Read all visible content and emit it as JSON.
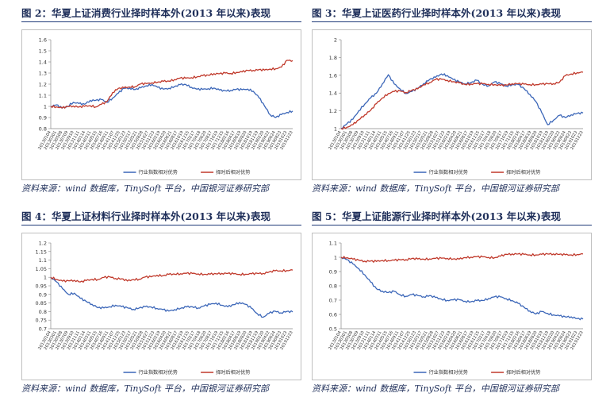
{
  "panels": [
    {
      "title": "图 2：华夏上证消费行业择时样本外(2013 年以来)表现",
      "source": "资料来源：wind 数据库，TinySoft 平台，中国银河证券研究部",
      "chart_data": {
        "type": "line",
        "ylim": [
          0.8,
          1.6
        ],
        "yticks": [
          0.8,
          0.9,
          1,
          1.1,
          1.2,
          1.3,
          1.4,
          1.5,
          1.6
        ],
        "xticks": [
          "20130104",
          "20130301",
          "20130508",
          "20130709",
          "20130910",
          "20131111",
          "20140114",
          "20140311",
          "20140515",
          "20140716",
          "20140911",
          "20141107",
          "20141225",
          "20150123",
          "20150317",
          "20150521",
          "20150828",
          "20151027",
          "20151223",
          "20160219",
          "20160420",
          "20160621",
          "20160817",
          "20161019",
          "20161215",
          "20170217",
          "20170418",
          "20170620",
          "20170817",
          "20171019",
          "20171215",
          "20180216",
          "20180417",
          "20180619",
          "20180820",
          "20181019",
          "20181219",
          "20190220",
          "20190422",
          "20190624",
          "20190823",
          "20191023",
          "20191223"
        ],
        "legend": [
          "行业指数相对优势",
          "择时后相对优势"
        ],
        "series": [
          {
            "name": "行业指数相对优势",
            "color": "#3b66b8",
            "values": [
              1.0,
              1.01,
              0.98,
              1.0,
              1.04,
              1.03,
              1.02,
              1.05,
              1.05,
              1.06,
              1.04,
              1.08,
              1.12,
              1.16,
              1.16,
              1.15,
              1.17,
              1.19,
              1.2,
              1.17,
              1.15,
              1.16,
              1.18,
              1.2,
              1.2,
              1.17,
              1.15,
              1.15,
              1.16,
              1.17,
              1.15,
              1.14,
              1.14,
              1.15,
              1.15,
              1.16,
              1.14,
              1.08,
              1.0,
              0.92,
              0.9,
              0.93,
              0.95,
              0.96
            ]
          },
          {
            "name": "择时后相对优势",
            "color": "#c0392b",
            "values": [
              1.0,
              1.0,
              0.99,
              1.0,
              1.0,
              0.99,
              1.0,
              1.01,
              1.0,
              1.02,
              1.04,
              1.12,
              1.16,
              1.17,
              1.18,
              1.18,
              1.2,
              1.2,
              1.21,
              1.22,
              1.23,
              1.23,
              1.24,
              1.25,
              1.25,
              1.26,
              1.27,
              1.28,
              1.28,
              1.29,
              1.29,
              1.3,
              1.3,
              1.31,
              1.31,
              1.32,
              1.32,
              1.33,
              1.33,
              1.34,
              1.34,
              1.35,
              1.41,
              1.41
            ]
          }
        ]
      }
    },
    {
      "title": "图 3：华夏上证医药行业择时样本外(2013 年以来)表现",
      "source": "资料来源：wind 数据库，TinySoft 平台，中国银河证券研究部",
      "chart_data": {
        "type": "line",
        "ylim": [
          1,
          2
        ],
        "yticks": [
          1,
          1.2,
          1.4,
          1.6,
          1.8,
          2
        ],
        "xticks": [
          "20130104",
          "20130301",
          "20130508",
          "20130709",
          "20130910",
          "20131111",
          "20140114",
          "20140311",
          "20140515",
          "20140716",
          "20140911",
          "20141107",
          "20141225",
          "20150123",
          "20150317",
          "20150521",
          "20150828",
          "20151027",
          "20151223",
          "20160219",
          "20160420",
          "20160621",
          "20160817",
          "20161019",
          "20161215",
          "20170217",
          "20170418",
          "20170620",
          "20170817",
          "20171019",
          "20171215",
          "20180216",
          "20180417",
          "20180619",
          "20180820",
          "20181019",
          "20181219",
          "20190220",
          "20190422",
          "20190624",
          "20190823",
          "20191023",
          "20191223"
        ],
        "legend": [
          "行业指数相对优势",
          "择时后相对优势"
        ],
        "series": [
          {
            "name": "行业指数相对优势",
            "color": "#3b66b8",
            "values": [
              1.0,
              1.05,
              1.1,
              1.2,
              1.28,
              1.35,
              1.4,
              1.5,
              1.6,
              1.5,
              1.45,
              1.4,
              1.42,
              1.45,
              1.5,
              1.55,
              1.58,
              1.62,
              1.6,
              1.55,
              1.52,
              1.5,
              1.52,
              1.55,
              1.5,
              1.48,
              1.52,
              1.5,
              1.48,
              1.5,
              1.5,
              1.45,
              1.38,
              1.3,
              1.18,
              1.05,
              1.1,
              1.15,
              1.12,
              1.15,
              1.17,
              1.18
            ]
          },
          {
            "name": "择时后相对优势",
            "color": "#c0392b",
            "values": [
              1.0,
              1.02,
              1.05,
              1.1,
              1.15,
              1.2,
              1.28,
              1.35,
              1.4,
              1.42,
              1.42,
              1.4,
              1.43,
              1.45,
              1.5,
              1.52,
              1.55,
              1.55,
              1.54,
              1.53,
              1.52,
              1.5,
              1.5,
              1.5,
              1.5,
              1.5,
              1.5,
              1.49,
              1.49,
              1.5,
              1.5,
              1.5,
              1.5,
              1.5,
              1.5,
              1.5,
              1.5,
              1.52,
              1.6,
              1.62,
              1.63,
              1.63
            ]
          }
        ]
      }
    },
    {
      "title": "图 4：华夏上证材料行业择时样本外(2013 年以来)表现",
      "source": "资料来源：wind 数据库，TinySoft 平台，中国银河证券研究部",
      "chart_data": {
        "type": "line",
        "ylim": [
          0.7,
          1.2
        ],
        "yticks": [
          0.7,
          0.75,
          0.8,
          0.85,
          0.9,
          0.95,
          1,
          1.05,
          1.1,
          1.15,
          1.2
        ],
        "xticks": [
          "20130104",
          "20130301",
          "20130508",
          "20130709",
          "20130910",
          "20131111",
          "20140114",
          "20140311",
          "20140515",
          "20140716",
          "20140911",
          "20141107",
          "20141225",
          "20150123",
          "20150317",
          "20150521",
          "20150828",
          "20151027",
          "20151223",
          "20160219",
          "20160420",
          "20160621",
          "20160817",
          "20161019",
          "20161215",
          "20170217",
          "20170418",
          "20170620",
          "20170817",
          "20171019",
          "20171215",
          "20180216",
          "20180417",
          "20180619",
          "20180820",
          "20181019",
          "20181219",
          "20190220",
          "20190422",
          "20190624",
          "20190823",
          "20191023",
          "20191223"
        ],
        "legend": [
          "行业指数相对优势",
          "择时后相对优势"
        ],
        "series": [
          {
            "name": "行业指数相对优势",
            "color": "#3b66b8",
            "values": [
              1.0,
              0.97,
              0.93,
              0.9,
              0.91,
              0.88,
              0.86,
              0.84,
              0.82,
              0.82,
              0.83,
              0.84,
              0.83,
              0.82,
              0.81,
              0.82,
              0.83,
              0.83,
              0.82,
              0.81,
              0.8,
              0.81,
              0.82,
              0.83,
              0.83,
              0.82,
              0.83,
              0.84,
              0.85,
              0.84,
              0.83,
              0.84,
              0.85,
              0.84,
              0.82,
              0.79,
              0.77,
              0.79,
              0.8,
              0.79,
              0.8,
              0.8
            ]
          },
          {
            "name": "择时后相对优势",
            "color": "#c0392b",
            "values": [
              1.0,
              0.99,
              0.98,
              0.98,
              0.98,
              0.97,
              0.98,
              0.99,
              0.99,
              1.0,
              1.0,
              0.99,
              0.99,
              0.98,
              0.99,
              0.99,
              1.0,
              1.0,
              1.01,
              1.01,
              1.02,
              1.02,
              1.02,
              1.02,
              1.02,
              1.02,
              1.02,
              1.02,
              1.02,
              1.02,
              1.02,
              1.02,
              1.02,
              1.02,
              1.02,
              1.02,
              1.02,
              1.03,
              1.04,
              1.04,
              1.04,
              1.04
            ]
          }
        ]
      }
    },
    {
      "title": "图 5：华夏上证能源行业择时样本外(2013 年以来)表现",
      "source": "资料来源：wind 数据库，TinySoft 平台，中国银河证券研究部",
      "chart_data": {
        "type": "line",
        "ylim": [
          0.5,
          1.1
        ],
        "yticks": [
          0.5,
          0.6,
          0.7,
          0.8,
          0.9,
          1,
          1.1
        ],
        "xticks": [
          "20130104",
          "20130301",
          "20130508",
          "20130709",
          "20130910",
          "20131111",
          "20140114",
          "20140311",
          "20140515",
          "20140716",
          "20140911",
          "20141107",
          "20141225",
          "20150123",
          "20150317",
          "20150521",
          "20150828",
          "20151027",
          "20151223",
          "20160219",
          "20160420",
          "20160621",
          "20160817",
          "20161019",
          "20161215",
          "20170217",
          "20170418",
          "20170620",
          "20170817",
          "20171019",
          "20171215",
          "20180216",
          "20180417",
          "20180619",
          "20180820",
          "20181019",
          "20181219",
          "20190220",
          "20190422",
          "20190624",
          "20190823",
          "20191023",
          "20191223"
        ],
        "legend": [
          "行业指数相对优势",
          "择时后相对优势"
        ],
        "series": [
          {
            "name": "行业指数相对优势",
            "color": "#3b66b8",
            "values": [
              1.0,
              0.98,
              0.95,
              0.92,
              0.88,
              0.83,
              0.78,
              0.76,
              0.75,
              0.76,
              0.74,
              0.73,
              0.74,
              0.73,
              0.72,
              0.73,
              0.72,
              0.71,
              0.7,
              0.7,
              0.7,
              0.69,
              0.69,
              0.7,
              0.7,
              0.71,
              0.72,
              0.72,
              0.71,
              0.7,
              0.68,
              0.65,
              0.62,
              0.6,
              0.62,
              0.61,
              0.6,
              0.59,
              0.58,
              0.58,
              0.57,
              0.57
            ]
          },
          {
            "name": "择时后相对优势",
            "color": "#c0392b",
            "values": [
              1.0,
              1.0,
              0.99,
              0.98,
              0.97,
              0.97,
              0.97,
              0.98,
              0.98,
              0.98,
              0.98,
              0.98,
              0.99,
              0.99,
              0.99,
              0.99,
              0.99,
              0.99,
              0.99,
              0.99,
              0.99,
              1.0,
              1.0,
              1.0,
              1.0,
              1.0,
              1.0,
              1.01,
              1.02,
              1.02,
              1.02,
              1.02,
              1.02,
              1.02,
              1.02,
              1.02,
              1.02,
              1.02,
              1.02,
              1.02,
              1.02,
              1.02
            ]
          }
        ]
      }
    }
  ]
}
